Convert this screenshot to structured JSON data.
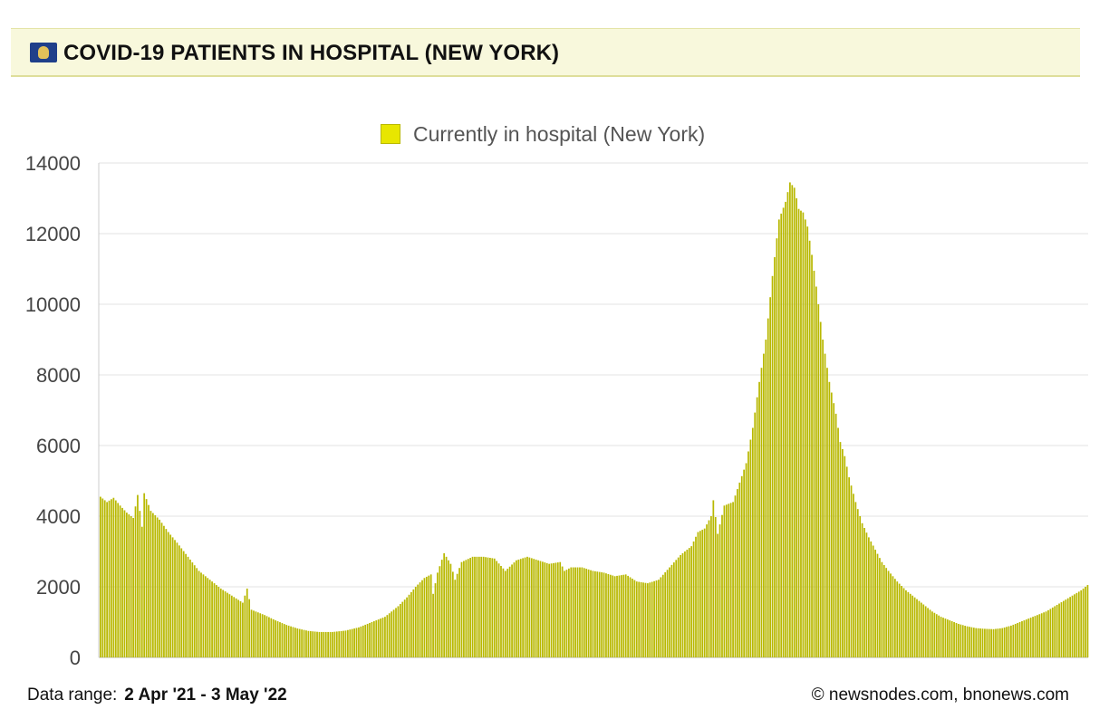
{
  "header": {
    "title": "COVID-19 PATIENTS IN HOSPITAL (NEW YORK)",
    "flag_icon": "new-york-state-flag-icon"
  },
  "footer": {
    "range_label": "Data range:",
    "range_value": "2 Apr '21  -  3 May '22",
    "credit": "© newsnodes.com, bnonews.com"
  },
  "colors": {
    "bar": "#b8b800",
    "legend_swatch": "#e8e600",
    "grid": "#e3e3e3",
    "header_bg": "#f8f8dc"
  },
  "chart_data": {
    "type": "bar",
    "title": "",
    "xlabel": "",
    "ylabel": "",
    "ylim": [
      0,
      14000
    ],
    "yticks": [
      "0",
      "2000",
      "4000",
      "6000",
      "8000",
      "10000",
      "12000",
      "14000"
    ],
    "grid": true,
    "legend_position": "top-center",
    "x_range": [
      "2021-04-02",
      "2022-05-03"
    ],
    "series": [
      {
        "name": "Currently in hospital (New York)",
        "anchors": [
          [
            0,
            4550
          ],
          [
            3,
            4400
          ],
          [
            6,
            4520
          ],
          [
            9,
            4300
          ],
          [
            12,
            4100
          ],
          [
            15,
            3950
          ],
          [
            17,
            4600
          ],
          [
            19,
            3700
          ],
          [
            20,
            4650
          ],
          [
            23,
            4150
          ],
          [
            27,
            3900
          ],
          [
            31,
            3550
          ],
          [
            35,
            3250
          ],
          [
            40,
            2850
          ],
          [
            45,
            2450
          ],
          [
            50,
            2200
          ],
          [
            55,
            1950
          ],
          [
            60,
            1750
          ],
          [
            65,
            1550
          ],
          [
            67,
            1950
          ],
          [
            69,
            1350
          ],
          [
            75,
            1200
          ],
          [
            80,
            1050
          ],
          [
            85,
            920
          ],
          [
            90,
            820
          ],
          [
            95,
            750
          ],
          [
            100,
            720
          ],
          [
            106,
            720
          ],
          [
            112,
            760
          ],
          [
            118,
            850
          ],
          [
            124,
            1000
          ],
          [
            130,
            1150
          ],
          [
            136,
            1450
          ],
          [
            140,
            1700
          ],
          [
            144,
            2000
          ],
          [
            148,
            2250
          ],
          [
            151,
            2350
          ],
          [
            152,
            1800
          ],
          [
            154,
            2400
          ],
          [
            157,
            2950
          ],
          [
            160,
            2650
          ],
          [
            162,
            2200
          ],
          [
            165,
            2700
          ],
          [
            170,
            2850
          ],
          [
            175,
            2850
          ],
          [
            180,
            2800
          ],
          [
            185,
            2450
          ],
          [
            190,
            2750
          ],
          [
            195,
            2850
          ],
          [
            200,
            2750
          ],
          [
            205,
            2650
          ],
          [
            210,
            2700
          ],
          [
            212,
            2450
          ],
          [
            215,
            2550
          ],
          [
            220,
            2550
          ],
          [
            225,
            2450
          ],
          [
            230,
            2400
          ],
          [
            235,
            2300
          ],
          [
            240,
            2350
          ],
          [
            245,
            2150
          ],
          [
            250,
            2100
          ],
          [
            255,
            2200
          ],
          [
            260,
            2550
          ],
          [
            265,
            2900
          ],
          [
            270,
            3150
          ],
          [
            273,
            3550
          ],
          [
            276,
            3650
          ],
          [
            279,
            4000
          ],
          [
            280,
            4450
          ],
          [
            282,
            3500
          ],
          [
            285,
            4300
          ],
          [
            289,
            4400
          ],
          [
            292,
            4950
          ],
          [
            295,
            5500
          ],
          [
            298,
            6500
          ],
          [
            301,
            7800
          ],
          [
            304,
            9000
          ],
          [
            307,
            10800
          ],
          [
            310,
            12400
          ],
          [
            313,
            12900
          ],
          [
            315,
            13450
          ],
          [
            317,
            13300
          ],
          [
            319,
            12700
          ],
          [
            321,
            12600
          ],
          [
            323,
            12200
          ],
          [
            325,
            11400
          ],
          [
            327,
            10500
          ],
          [
            330,
            9000
          ],
          [
            333,
            7800
          ],
          [
            336,
            6900
          ],
          [
            338,
            6100
          ],
          [
            340,
            5700
          ],
          [
            342,
            5100
          ],
          [
            345,
            4400
          ],
          [
            348,
            3800
          ],
          [
            351,
            3400
          ],
          [
            354,
            3050
          ],
          [
            357,
            2700
          ],
          [
            360,
            2450
          ],
          [
            364,
            2150
          ],
          [
            368,
            1900
          ],
          [
            372,
            1700
          ],
          [
            376,
            1500
          ],
          [
            380,
            1300
          ],
          [
            384,
            1150
          ],
          [
            388,
            1050
          ],
          [
            392,
            950
          ],
          [
            396,
            880
          ],
          [
            400,
            830
          ],
          [
            404,
            810
          ],
          [
            408,
            800
          ],
          [
            412,
            830
          ],
          [
            416,
            900
          ],
          [
            420,
            1000
          ],
          [
            424,
            1100
          ],
          [
            428,
            1200
          ],
          [
            432,
            1300
          ],
          [
            436,
            1450
          ],
          [
            440,
            1600
          ],
          [
            444,
            1750
          ],
          [
            448,
            1900
          ],
          [
            451,
            2050
          ]
        ]
      }
    ]
  }
}
